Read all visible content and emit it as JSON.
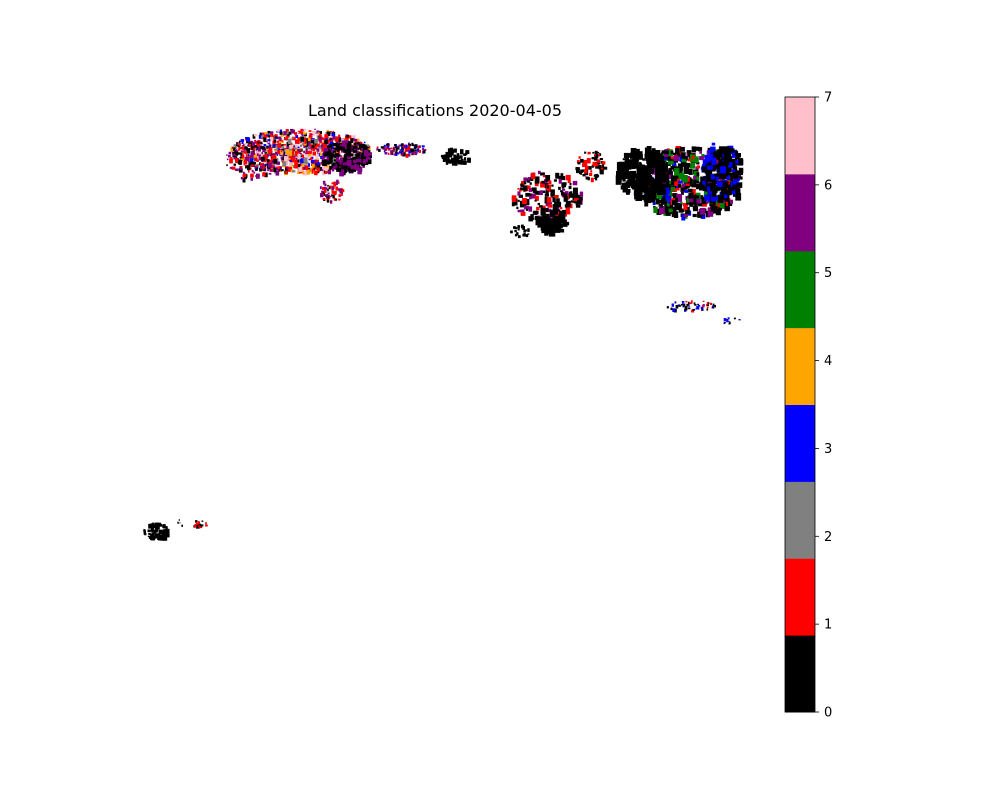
{
  "figure": {
    "title": "Land classifications 2020-04-05"
  },
  "colorbar": {
    "min": 0,
    "max": 7,
    "ticks": [
      "0",
      "1",
      "2",
      "3",
      "4",
      "5",
      "6",
      "7"
    ],
    "colors": [
      "#000000",
      "#ff0000",
      "#808080",
      "#0000ff",
      "#ffa500",
      "#008000",
      "#800080",
      "#ffc0cb"
    ]
  },
  "map": {
    "background_color": "#ffffff",
    "class_colors": {
      "0": "#000000",
      "1": "#ff0000",
      "2": "#808080",
      "3": "#0000ff",
      "4": "#ffa500",
      "5": "#008000",
      "6": "#800080",
      "7": "#ffc0cb"
    }
  }
}
